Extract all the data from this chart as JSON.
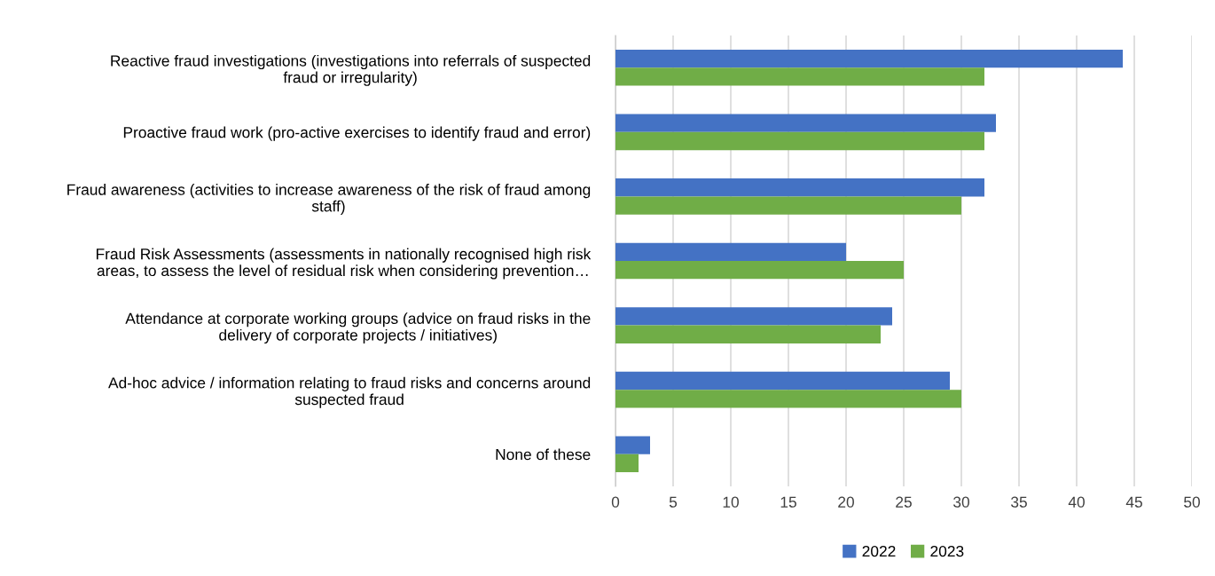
{
  "chart_data": {
    "type": "bar",
    "orientation": "horizontal",
    "categories": [
      "Reactive fraud investigations (investigations into referrals of suspected\nfraud or irregularity)",
      "Proactive fraud work (pro-active exercises to identify fraud and error)",
      "Fraud awareness (activities to increase awareness of the risk of fraud among\nstaff)",
      "Fraud Risk Assessments (assessments in nationally recognised high risk\nareas, to assess the level of residual risk when considering prevention…",
      "Attendance at corporate working groups (advice on fraud risks in the\ndelivery of corporate projects / initiatives)",
      "Ad-hoc advice / information relating to fraud risks and concerns around\nsuspected fraud",
      "None of these"
    ],
    "series": [
      {
        "name": "2022",
        "color": "#4472c4",
        "values": [
          44,
          33,
          32,
          20,
          24,
          29,
          3
        ]
      },
      {
        "name": "2023",
        "color": "#70ad47",
        "values": [
          32,
          32,
          30,
          25,
          23,
          30,
          2
        ]
      }
    ],
    "xlim": [
      0,
      50
    ],
    "xticks": [
      0,
      5,
      10,
      15,
      20,
      25,
      30,
      35,
      40,
      45,
      50
    ],
    "grid": "x",
    "legend": "bottom"
  }
}
